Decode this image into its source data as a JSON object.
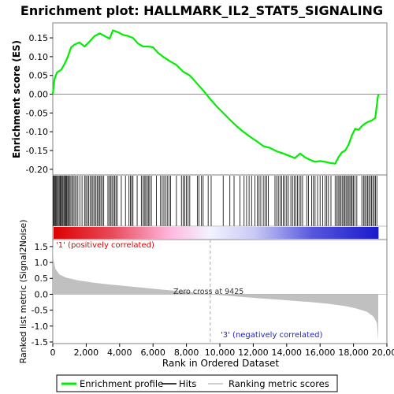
{
  "chart_data": {
    "type": "line",
    "title": "Enrichment plot: HALLMARK_IL2_STAT5_SIGNALING",
    "xlabel": "Rank in Ordered Dataset",
    "es_panel": {
      "ylabel": "Enrichment score (ES)",
      "ylim": [
        -0.215,
        0.19
      ],
      "yticks": [
        "0.15",
        "0.10",
        "0.05",
        "0.00",
        "-0.05",
        "-0.10",
        "-0.15",
        "-0.20"
      ],
      "ytick_values": [
        0.15,
        0.1,
        0.05,
        0.0,
        -0.05,
        -0.1,
        -0.15,
        -0.2
      ],
      "series_name": "Enrichment profile",
      "points": [
        [
          0,
          0.0
        ],
        [
          100,
          0.04
        ],
        [
          250,
          0.058
        ],
        [
          500,
          0.065
        ],
        [
          700,
          0.08
        ],
        [
          900,
          0.1
        ],
        [
          1100,
          0.125
        ],
        [
          1300,
          0.132
        ],
        [
          1600,
          0.138
        ],
        [
          1900,
          0.127
        ],
        [
          2200,
          0.14
        ],
        [
          2500,
          0.155
        ],
        [
          2800,
          0.162
        ],
        [
          3100,
          0.155
        ],
        [
          3400,
          0.148
        ],
        [
          3600,
          0.17
        ],
        [
          3900,
          0.165
        ],
        [
          4200,
          0.158
        ],
        [
          4500,
          0.155
        ],
        [
          4800,
          0.15
        ],
        [
          5100,
          0.135
        ],
        [
          5400,
          0.127
        ],
        [
          5700,
          0.127
        ],
        [
          6000,
          0.125
        ],
        [
          6300,
          0.11
        ],
        [
          6600,
          0.1
        ],
        [
          7000,
          0.088
        ],
        [
          7400,
          0.078
        ],
        [
          7800,
          0.06
        ],
        [
          8200,
          0.05
        ],
        [
          8600,
          0.03
        ],
        [
          9000,
          0.01
        ],
        [
          9425,
          -0.013
        ],
        [
          9800,
          -0.032
        ],
        [
          10200,
          -0.05
        ],
        [
          10600,
          -0.068
        ],
        [
          11000,
          -0.085
        ],
        [
          11400,
          -0.1
        ],
        [
          11800,
          -0.113
        ],
        [
          12200,
          -0.125
        ],
        [
          12600,
          -0.138
        ],
        [
          13000,
          -0.143
        ],
        [
          13400,
          -0.152
        ],
        [
          13800,
          -0.158
        ],
        [
          14200,
          -0.165
        ],
        [
          14500,
          -0.17
        ],
        [
          14800,
          -0.158
        ],
        [
          15100,
          -0.168
        ],
        [
          15400,
          -0.175
        ],
        [
          15700,
          -0.18
        ],
        [
          16000,
          -0.178
        ],
        [
          16300,
          -0.18
        ],
        [
          16600,
          -0.183
        ],
        [
          16900,
          -0.185
        ],
        [
          17100,
          -0.168
        ],
        [
          17300,
          -0.155
        ],
        [
          17500,
          -0.15
        ],
        [
          17700,
          -0.135
        ],
        [
          17900,
          -0.11
        ],
        [
          18100,
          -0.092
        ],
        [
          18300,
          -0.095
        ],
        [
          18500,
          -0.085
        ],
        [
          18700,
          -0.078
        ],
        [
          18900,
          -0.073
        ],
        [
          19100,
          -0.07
        ],
        [
          19300,
          -0.063
        ],
        [
          19450,
          -0.01
        ],
        [
          19500,
          0.0
        ]
      ]
    },
    "hits_panel": {
      "series_name": "Hits",
      "hit_ranks": [
        20,
        60,
        110,
        160,
        220,
        280,
        330,
        390,
        450,
        500,
        560,
        610,
        670,
        720,
        780,
        830,
        890,
        940,
        1000,
        1080,
        1150,
        1230,
        1320,
        1400,
        1500,
        1620,
        1750,
        1900,
        1980,
        2060,
        2150,
        2230,
        2320,
        2400,
        2480,
        2570,
        2650,
        2720,
        2800,
        2880,
        2960,
        3050,
        3300,
        3380,
        3460,
        3540,
        3620,
        3700,
        3780,
        3860,
        4100,
        4350,
        4560,
        4650,
        4720,
        4800,
        5050,
        5300,
        5400,
        5480,
        5560,
        5650,
        5720,
        5800,
        5900,
        6200,
        6450,
        6550,
        6650,
        6750,
        6850,
        6950,
        7050,
        7400,
        7700,
        7800,
        7900,
        8000,
        8100,
        8200,
        8650,
        8750,
        8900,
        9000,
        9300,
        9480,
        10200,
        10600,
        10850,
        11200,
        11450,
        11600,
        11750,
        11900,
        12100,
        12250,
        12350,
        12450,
        12600,
        12700,
        12800,
        12900,
        13300,
        13400,
        13500,
        13600,
        13700,
        13800,
        13900,
        14000,
        14100,
        14250,
        14350,
        14450,
        14550,
        14650,
        14750,
        14850,
        14950,
        15200,
        15300,
        15500,
        15600,
        15700,
        15850,
        16000,
        16150,
        16300,
        16400,
        16500,
        16650,
        16900,
        17000,
        17080,
        17160,
        17240,
        17320,
        17400,
        17480,
        17550,
        17620,
        17700,
        17780,
        17850,
        17920,
        18000,
        18080,
        18200,
        18500,
        18600,
        18680,
        18760,
        18840,
        18920,
        19000,
        19080,
        19160,
        19240,
        19320,
        19400
      ]
    },
    "metric_panel": {
      "ylabel": "Ranked list metric (Signal2Noise)",
      "ylim": [
        -1.55,
        1.72
      ],
      "yticks": [
        "1.5",
        "1.0",
        "0.5",
        "0.0",
        "-0.5",
        "-1.0",
        "-1.5"
      ],
      "ytick_values": [
        1.5,
        1.0,
        0.5,
        0.0,
        -0.5,
        -1.0,
        -1.5
      ],
      "series_name": "Ranking metric scores",
      "points": [
        [
          0,
          1.6
        ],
        [
          40,
          1.1
        ],
        [
          150,
          0.8
        ],
        [
          400,
          0.62
        ],
        [
          800,
          0.52
        ],
        [
          1500,
          0.44
        ],
        [
          2500,
          0.36
        ],
        [
          3500,
          0.3
        ],
        [
          4500,
          0.25
        ],
        [
          5500,
          0.2
        ],
        [
          6500,
          0.15
        ],
        [
          7500,
          0.1
        ],
        [
          8500,
          0.05
        ],
        [
          9425,
          0.0
        ],
        [
          10500,
          -0.05
        ],
        [
          11500,
          -0.09
        ],
        [
          12500,
          -0.13
        ],
        [
          13500,
          -0.17
        ],
        [
          14500,
          -0.21
        ],
        [
          15500,
          -0.25
        ],
        [
          16500,
          -0.3
        ],
        [
          17500,
          -0.37
        ],
        [
          18200,
          -0.45
        ],
        [
          18800,
          -0.55
        ],
        [
          19200,
          -0.7
        ],
        [
          19400,
          -0.9
        ],
        [
          19480,
          -1.45
        ]
      ],
      "zero_cross_label": "Zero cross at 9425",
      "zero_cross_rank": 9425,
      "positive_label": "'1' (positively correlated)",
      "negative_label": "'3' (negatively correlated)"
    },
    "xlim": [
      0,
      20000
    ],
    "xticks": [
      "0",
      "2,000",
      "4,000",
      "6,000",
      "8,000",
      "10,000",
      "12,000",
      "14,000",
      "16,000",
      "18,000",
      "20,000"
    ],
    "xtick_values": [
      0,
      2000,
      4000,
      6000,
      8000,
      10000,
      12000,
      14000,
      16000,
      18000,
      20000
    ],
    "dataset_size": 19500,
    "legend": {
      "placement": "bottom",
      "items": [
        "Enrichment profile",
        "Hits",
        "Ranking metric scores"
      ]
    },
    "colors": {
      "profile": "#00ee00",
      "hits": "#000000",
      "metric_fill": "#c0c0c0",
      "positive": "#dd0000",
      "negative": "#2222cc",
      "zero_line": "#808080"
    }
  }
}
